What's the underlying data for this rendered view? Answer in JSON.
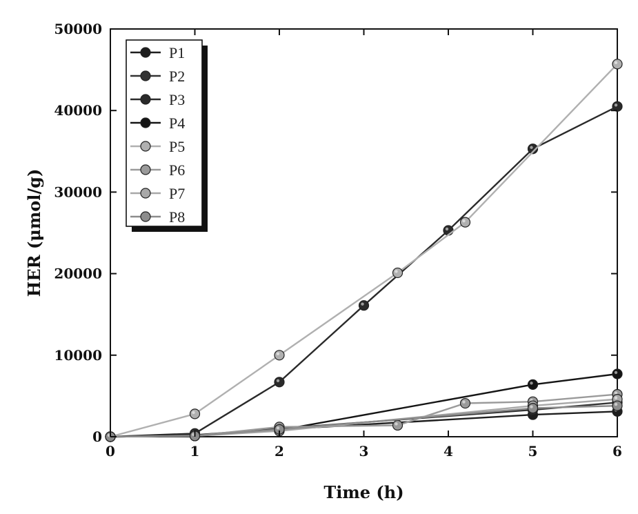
{
  "chart_data": {
    "type": "line",
    "xlabel": "Time (h)",
    "ylabel": "HER (μmol/g)",
    "xlim": [
      0,
      6
    ],
    "ylim": [
      0,
      50000
    ],
    "xticks": [
      0,
      1,
      2,
      3,
      4,
      5,
      6
    ],
    "yticks": [
      0,
      10000,
      20000,
      30000,
      40000,
      50000
    ],
    "xtick_labels": [
      "0",
      "1",
      "2",
      "3",
      "4",
      "5",
      "6"
    ],
    "ytick_labels": [
      "0",
      "10000",
      "20000",
      "30000",
      "40000",
      "50000"
    ],
    "legend_position": "top-left",
    "series": [
      {
        "name": "P1",
        "color": "#1e1e1e",
        "x": [
          0,
          1,
          2,
          5,
          6
        ],
        "values": [
          0,
          100,
          900,
          2700,
          3100
        ]
      },
      {
        "name": "P2",
        "color": "#333333",
        "x": [
          0,
          1,
          2,
          5,
          6
        ],
        "values": [
          0,
          200,
          1000,
          3300,
          4200
        ]
      },
      {
        "name": "P3",
        "color": "#2a2a2a",
        "x": [
          0,
          1,
          2,
          3,
          4,
          5,
          6
        ],
        "values": [
          0,
          400,
          6700,
          16100,
          25300,
          35300,
          40500
        ]
      },
      {
        "name": "P4",
        "color": "#151515",
        "x": [
          0,
          1,
          2,
          5,
          6
        ],
        "values": [
          0,
          100,
          800,
          6400,
          7700
        ]
      },
      {
        "name": "P5",
        "color": "#b0b0b0",
        "x": [
          0,
          1,
          2,
          3.4,
          4.2,
          6
        ],
        "values": [
          0,
          2800,
          10000,
          20100,
          26300,
          45700
        ]
      },
      {
        "name": "P6",
        "color": "#9a9a9a",
        "x": [
          0,
          1,
          2,
          3.4,
          4.2,
          5,
          6
        ],
        "values": [
          0,
          100,
          1200,
          1400,
          4100,
          4300,
          5200
        ]
      },
      {
        "name": "P7",
        "color": "#a8a8a8",
        "x": [
          0,
          1,
          2,
          5,
          6
        ],
        "values": [
          0,
          100,
          700,
          3800,
          4600
        ]
      },
      {
        "name": "P8",
        "color": "#8c8c8c",
        "x": [
          0,
          1,
          2,
          5,
          6
        ],
        "values": [
          0,
          100,
          900,
          3500,
          3800
        ]
      }
    ]
  }
}
